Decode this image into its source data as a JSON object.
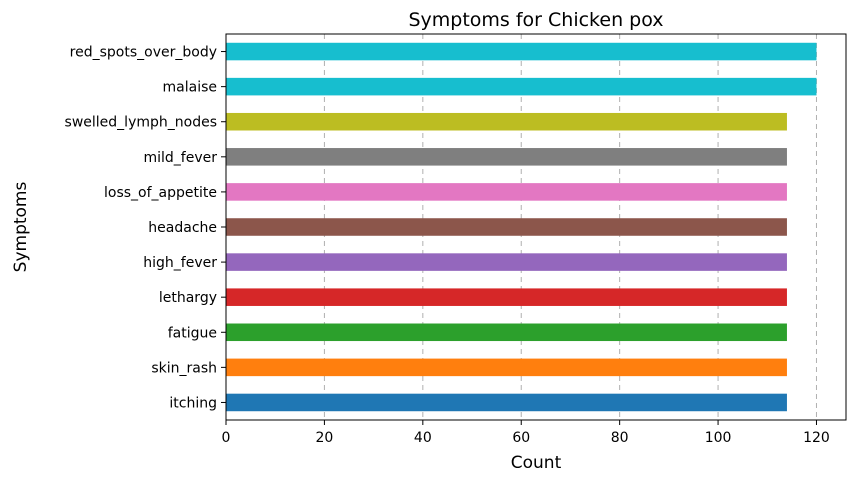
{
  "chart_data": {
    "type": "bar",
    "orientation": "horizontal",
    "title": "Symptoms for Chicken pox",
    "xlabel": "Count",
    "ylabel": "Symptoms",
    "xlim": [
      0,
      126
    ],
    "xticks": [
      0,
      20,
      40,
      60,
      80,
      100,
      120
    ],
    "grid": "x-dashed",
    "categories": [
      "itching",
      "skin_rash",
      "fatigue",
      "lethargy",
      "high_fever",
      "headache",
      "loss_of_appetite",
      "mild_fever",
      "swelled_lymph_nodes",
      "malaise",
      "red_spots_over_body"
    ],
    "values": [
      114,
      114,
      114,
      114,
      114,
      114,
      114,
      114,
      114,
      120,
      120
    ],
    "colors": [
      "#1f77b4",
      "#ff7f0e",
      "#2ca02c",
      "#d62728",
      "#9467bd",
      "#8c564b",
      "#e377c2",
      "#7f7f7f",
      "#bcbd22",
      "#17becf",
      "#17becf"
    ]
  }
}
